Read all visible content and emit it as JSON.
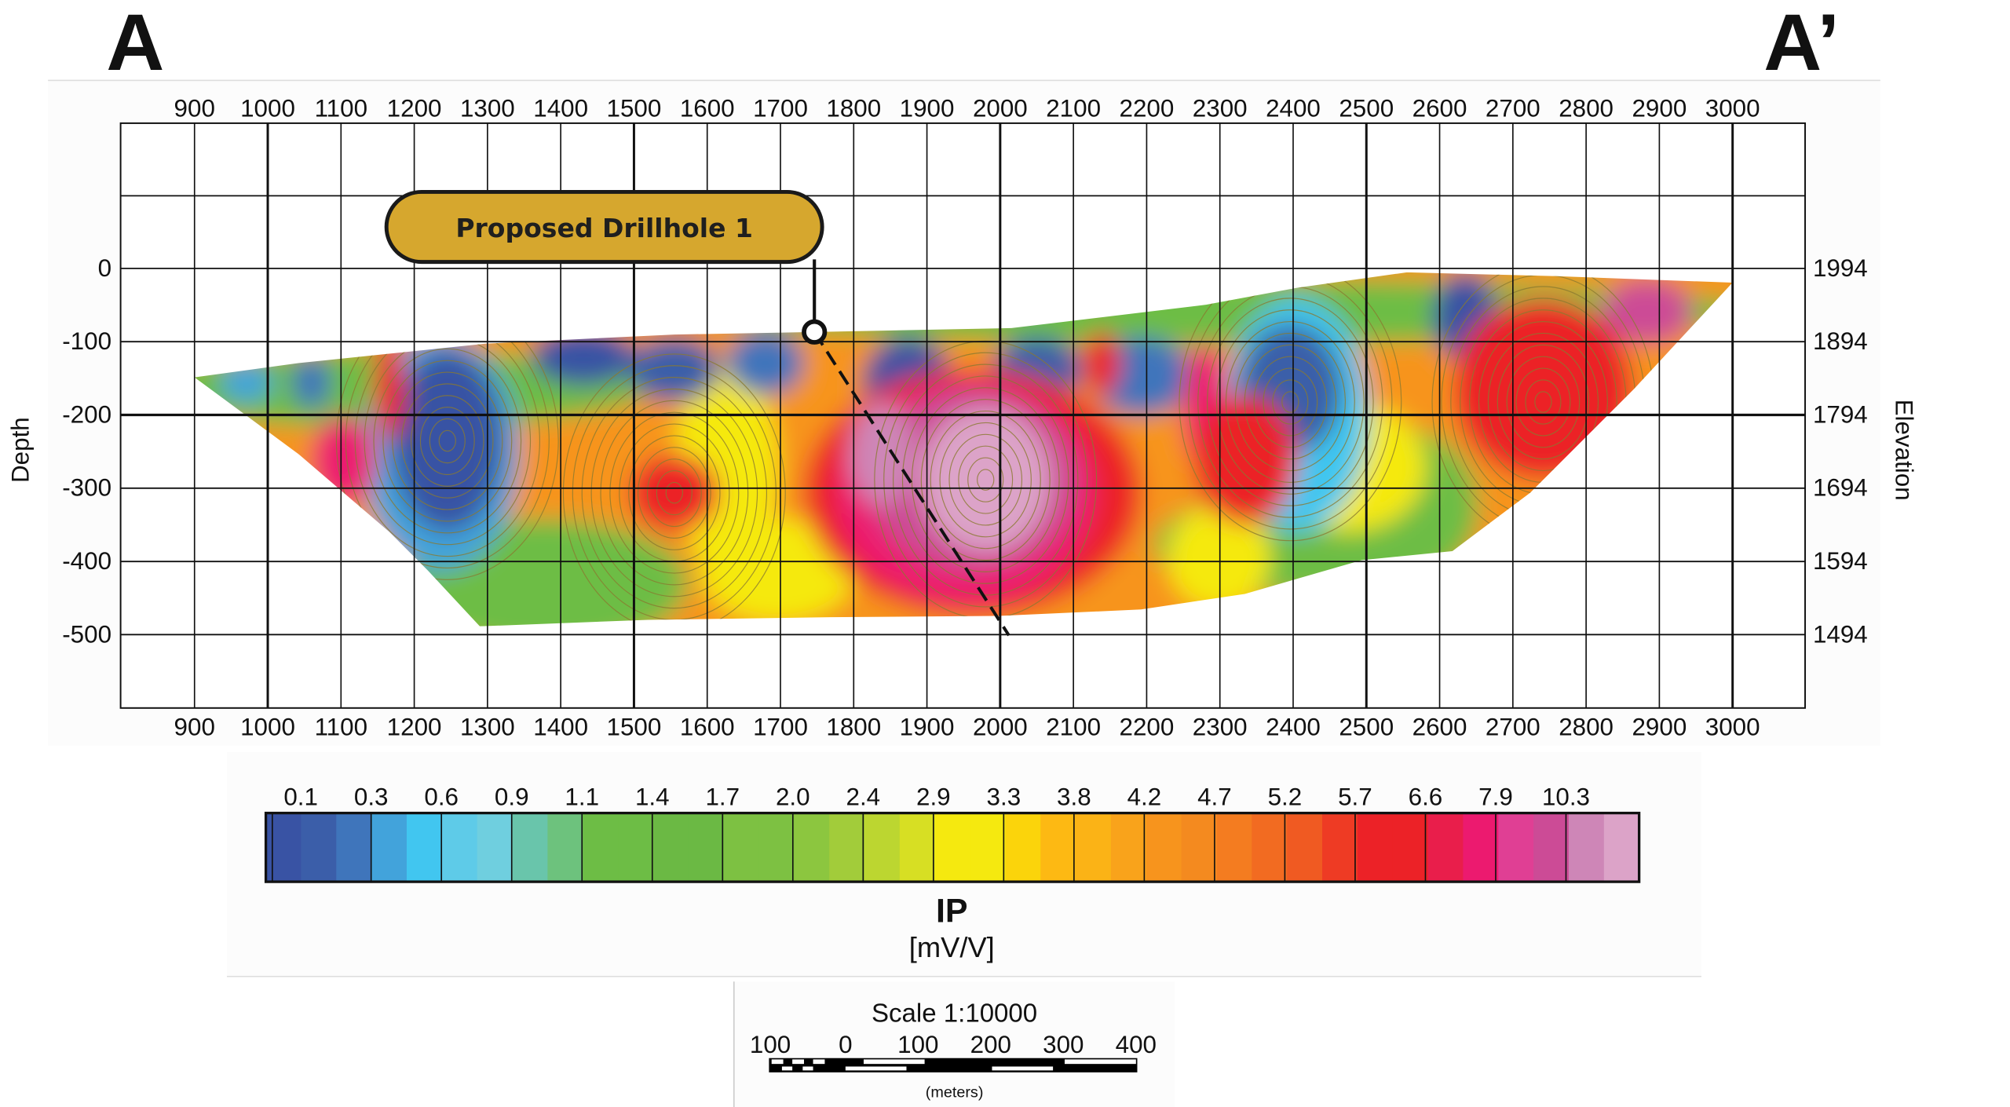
{
  "section": {
    "left_label": "A",
    "right_label": "A’",
    "x_ticks": [
      "900",
      "1000",
      "1100",
      "1200",
      "1300",
      "1400",
      "1500",
      "1600",
      "1700",
      "1800",
      "1900",
      "2000",
      "2100",
      "2200",
      "2300",
      "2400",
      "2500",
      "2600",
      "2700",
      "2800",
      "2900",
      "3000"
    ],
    "depth_axis_title": "Depth",
    "depth_ticks": [
      "0",
      "-100",
      "-200",
      "-300",
      "-400",
      "-500"
    ],
    "elevation_axis_title": "Elevation",
    "elevation_ticks": [
      "1994",
      "1894",
      "1794",
      "1694",
      "1594",
      "1494"
    ],
    "callout": {
      "label": "Proposed Drillhole 1",
      "color": "#d6a72e"
    }
  },
  "legend": {
    "tick_labels": [
      "0.1",
      "0.3",
      "0.6",
      "0.9",
      "1.1",
      "1.4",
      "1.7",
      "2.0",
      "2.4",
      "2.9",
      "3.3",
      "3.8",
      "4.2",
      "4.7",
      "5.2",
      "5.7",
      "6.6",
      "7.9",
      "10.3"
    ],
    "colors": [
      "#3953a4",
      "#3b5ea9",
      "#3f75bb",
      "#42a3db",
      "#41c6f0",
      "#5ecbe8",
      "#6fcfdf",
      "#69c5ab",
      "#6dc27d",
      "#6dbd45",
      "#6dbd45",
      "#6bb944",
      "#6bb944",
      "#7dc142",
      "#7dc142",
      "#8cc63f",
      "#a2cc3a",
      "#bcd630",
      "#d7df23",
      "#f5e90f",
      "#f5e90f",
      "#fbd40b",
      "#fdb913",
      "#fbb316",
      "#f9a31b",
      "#f7941d",
      "#f48a1f",
      "#f47c20",
      "#f26b21",
      "#f05a22",
      "#ee3b24",
      "#ec2227",
      "#ec2227",
      "#e91e4b",
      "#ec1a6f",
      "#e03f94",
      "#cc4b96",
      "#ce86b7",
      "#dca3c8"
    ],
    "title": "IP",
    "units": "[mV/V]"
  },
  "scale": {
    "title": "Scale 1:10000",
    "ticks": [
      "100",
      "0",
      "100",
      "200",
      "300",
      "400"
    ],
    "units": "(meters)"
  }
}
